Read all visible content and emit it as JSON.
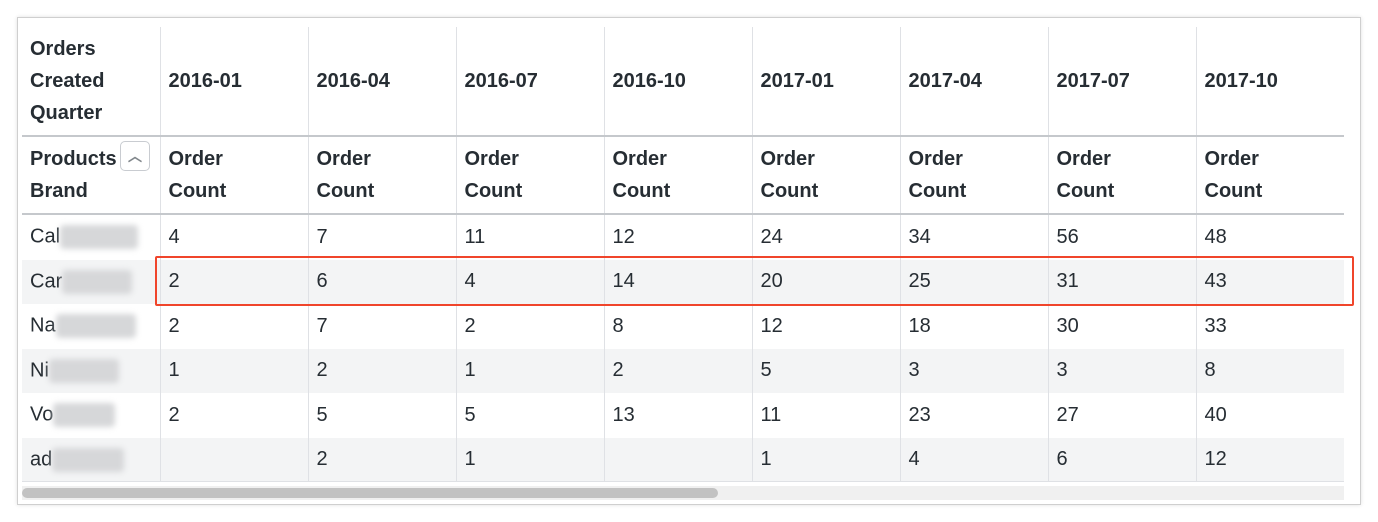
{
  "pivot_header": {
    "dimension_label": "Orders Created Quarter",
    "row_dimension_label": "Products Brand",
    "sort_icon": "chevron-up-icon",
    "columns": [
      "2016-01",
      "2016-04",
      "2016-07",
      "2016-10",
      "2017-01",
      "2017-04",
      "2017-07",
      "2017-10"
    ],
    "measure_label": "Order Count"
  },
  "rows": [
    {
      "brand": "Cal",
      "values": [
        "4",
        "7",
        "11",
        "12",
        "24",
        "34",
        "56",
        "48"
      ]
    },
    {
      "brand": "Car",
      "values": [
        "2",
        "6",
        "4",
        "14",
        "20",
        "25",
        "31",
        "43"
      ]
    },
    {
      "brand": "Na",
      "values": [
        "2",
        "7",
        "2",
        "8",
        "12",
        "18",
        "30",
        "33"
      ]
    },
    {
      "brand": "Ni",
      "values": [
        "1",
        "2",
        "1",
        "2",
        "5",
        "3",
        "3",
        "8"
      ]
    },
    {
      "brand": "Vo",
      "values": [
        "2",
        "5",
        "5",
        "13",
        "11",
        "23",
        "27",
        "40"
      ]
    },
    {
      "brand": "ad",
      "values": [
        "",
        "2",
        "1",
        "",
        "1",
        "4",
        "6",
        "12"
      ]
    }
  ],
  "highlighted_row": "Car",
  "colors": {
    "highlight": "#f0452b",
    "stripe": "#f3f4f5"
  }
}
